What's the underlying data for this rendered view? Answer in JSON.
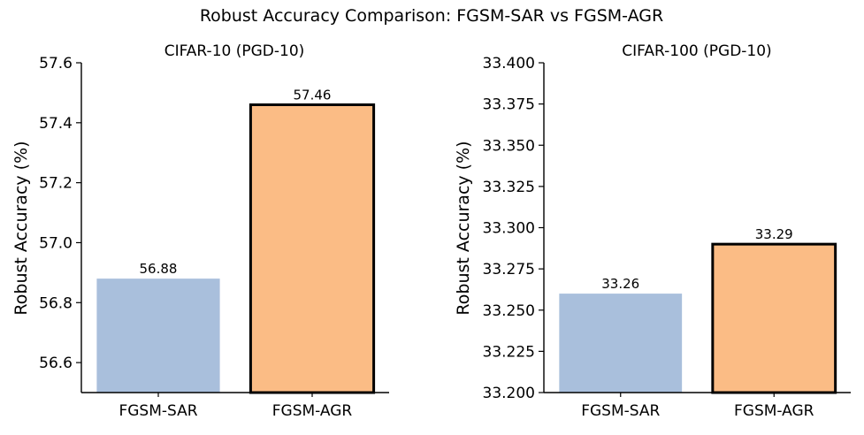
{
  "figure": {
    "title": "Robust Accuracy Comparison: FGSM-SAR vs FGSM-AGR"
  },
  "colors": {
    "sar": "#a9bfdc",
    "agr": "#fbbc85",
    "edge": "#000000"
  },
  "chart_data": [
    {
      "type": "bar",
      "title": "CIFAR-10 (PGD-10)",
      "xlabel": "",
      "ylabel": "Robust Accuracy (%)",
      "categories": [
        "FGSM-SAR",
        "FGSM-AGR"
      ],
      "values": [
        56.88,
        57.46
      ],
      "value_labels": [
        "56.88",
        "57.46"
      ],
      "ylim": [
        56.5,
        57.6
      ],
      "yticks": [
        56.6,
        56.8,
        57.0,
        57.2,
        57.4,
        57.6
      ],
      "ytick_labels": [
        "56.6",
        "56.8",
        "57.0",
        "57.2",
        "57.4",
        "57.6"
      ],
      "highlight_index": 1,
      "grid": false
    },
    {
      "type": "bar",
      "title": "CIFAR-100 (PGD-10)",
      "xlabel": "",
      "ylabel": "Robust Accuracy (%)",
      "categories": [
        "FGSM-SAR",
        "FGSM-AGR"
      ],
      "values": [
        33.26,
        33.29
      ],
      "value_labels": [
        "33.26",
        "33.29"
      ],
      "ylim": [
        33.2,
        33.4
      ],
      "yticks": [
        33.2,
        33.225,
        33.25,
        33.275,
        33.3,
        33.325,
        33.35,
        33.375,
        33.4
      ],
      "ytick_labels": [
        "33.200",
        "33.225",
        "33.250",
        "33.275",
        "33.300",
        "33.325",
        "33.350",
        "33.375",
        "33.400"
      ],
      "highlight_index": 1,
      "grid": false
    }
  ]
}
